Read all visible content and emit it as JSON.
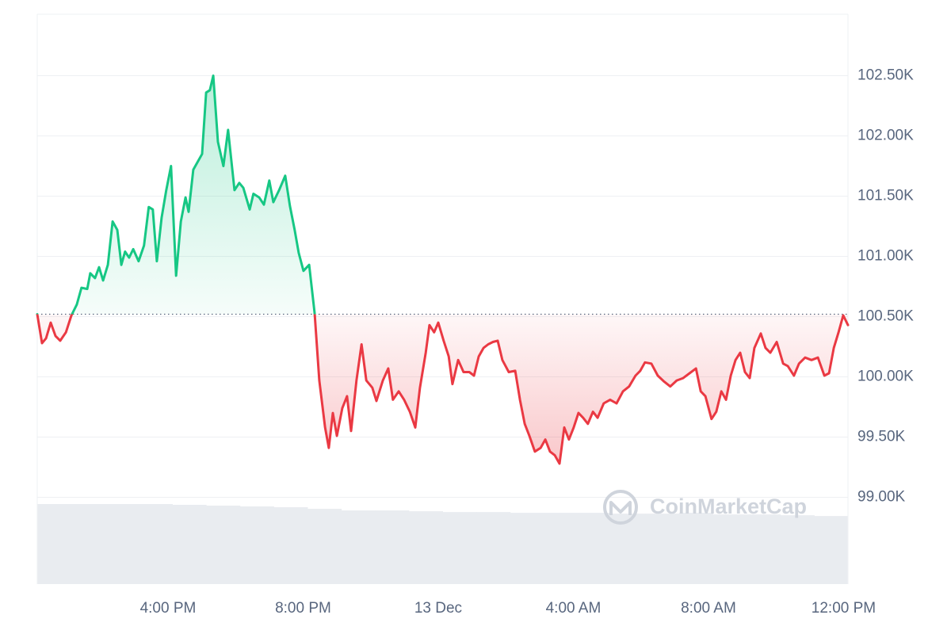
{
  "chart_data": {
    "type": "line",
    "watermark": "CoinMarketCap",
    "up_color": "#16c784",
    "down_color": "#ea3943",
    "baseline": 100520,
    "xlim": [
      12.13,
      36.13
    ],
    "ylim": [
      98280,
      103010
    ],
    "xticks": [
      {
        "value": 16,
        "label": "4:00 PM"
      },
      {
        "value": 20,
        "label": "8:00 PM"
      },
      {
        "value": 24,
        "label": "13 Dec"
      },
      {
        "value": 28,
        "label": "4:00 AM"
      },
      {
        "value": 32,
        "label": "8:00 AM"
      },
      {
        "value": 36,
        "label": "12:00 PM"
      }
    ],
    "yticks": [
      {
        "value": 99000,
        "label": "99.00K"
      },
      {
        "value": 99500,
        "label": "99.50K"
      },
      {
        "value": 100000,
        "label": "100.00K"
      },
      {
        "value": 100500,
        "label": "100.50K"
      },
      {
        "value": 101000,
        "label": "101.00K"
      },
      {
        "value": 101500,
        "label": "101.50K"
      },
      {
        "value": 102000,
        "label": "102.00K"
      },
      {
        "value": 102500,
        "label": "102.50K"
      }
    ],
    "grid": true,
    "x": [
      12.13,
      12.27,
      12.39,
      12.53,
      12.67,
      12.81,
      12.98,
      13.14,
      13.3,
      13.44,
      13.61,
      13.7,
      13.84,
      13.96,
      14.08,
      14.22,
      14.36,
      14.5,
      14.62,
      14.73,
      14.85,
      14.97,
      15.13,
      15.29,
      15.43,
      15.55,
      15.67,
      15.81,
      15.95,
      16.09,
      16.24,
      16.38,
      16.52,
      16.61,
      16.75,
      16.87,
      17.01,
      17.13,
      17.24,
      17.34,
      17.48,
      17.64,
      17.78,
      17.97,
      18.11,
      18.23,
      18.42,
      18.53,
      18.7,
      18.84,
      19.0,
      19.12,
      19.29,
      19.47,
      19.61,
      19.75,
      19.87,
      20.01,
      20.18,
      20.34,
      20.48,
      20.65,
      20.76,
      20.88,
      21.0,
      21.16,
      21.3,
      21.42,
      21.58,
      21.73,
      21.87,
      22.05,
      22.17,
      22.36,
      22.52,
      22.66,
      22.83,
      22.99,
      23.16,
      23.32,
      23.46,
      23.63,
      23.74,
      23.88,
      24.0,
      24.16,
      24.31,
      24.42,
      24.59,
      24.75,
      24.92,
      25.06,
      25.2,
      25.34,
      25.48,
      25.62,
      25.76,
      25.9,
      26.09,
      26.28,
      26.42,
      26.56,
      26.7,
      26.86,
      27.03,
      27.17,
      27.31,
      27.45,
      27.59,
      27.73,
      27.87,
      28.01,
      28.15,
      28.29,
      28.43,
      28.58,
      28.72,
      28.9,
      29.09,
      29.28,
      29.47,
      29.65,
      29.84,
      29.98,
      30.12,
      30.31,
      30.5,
      30.69,
      30.87,
      31.06,
      31.25,
      31.44,
      31.63,
      31.77,
      31.91,
      32.09,
      32.23,
      32.38,
      32.52,
      32.66,
      32.8,
      32.94,
      33.08,
      33.22,
      33.36,
      33.55,
      33.69,
      33.83,
      34.02,
      34.21,
      34.35,
      34.53,
      34.68,
      34.86,
      35.05,
      35.24,
      35.43,
      35.57,
      35.71,
      35.85,
      35.99,
      36.13
    ],
    "values": [
      100520,
      100280,
      100320,
      100450,
      100340,
      100300,
      100370,
      100510,
      100600,
      100740,
      100730,
      100860,
      100820,
      100910,
      100800,
      100930,
      101290,
      101220,
      100930,
      101040,
      100990,
      101060,
      100960,
      101090,
      101410,
      101390,
      100960,
      101320,
      101550,
      101750,
      100840,
      101290,
      101490,
      101370,
      101720,
      101780,
      101850,
      102360,
      102380,
      102500,
      101950,
      101750,
      102050,
      101550,
      101610,
      101570,
      101390,
      101520,
      101490,
      101430,
      101630,
      101450,
      101550,
      101670,
      101420,
      101220,
      101030,
      100880,
      100930,
      100530,
      99970,
      99580,
      99410,
      99700,
      99510,
      99740,
      99840,
      99550,
      99970,
      100270,
      99970,
      99910,
      99800,
      99970,
      100070,
      99810,
      99880,
      99810,
      99710,
      99580,
      99910,
      100200,
      100430,
      100370,
      100450,
      100300,
      100170,
      99940,
      100140,
      100040,
      100040,
      100010,
      100170,
      100240,
      100270,
      100290,
      100300,
      100140,
      100040,
      100050,
      99810,
      99610,
      99510,
      99380,
      99410,
      99480,
      99380,
      99350,
      99280,
      99580,
      99480,
      99580,
      99700,
      99660,
      99610,
      99710,
      99660,
      99780,
      99810,
      99780,
      99880,
      99920,
      100010,
      100050,
      100120,
      100110,
      100010,
      99960,
      99920,
      99970,
      99990,
      100030,
      100070,
      99880,
      99840,
      99650,
      99710,
      99880,
      99810,
      100010,
      100140,
      100200,
      100040,
      99990,
      100240,
      100360,
      100240,
      100200,
      100290,
      100110,
      100090,
      100010,
      100110,
      100160,
      100140,
      100160,
      100010,
      100030,
      100240,
      100370,
      100510,
      100430
    ],
    "volume": {
      "color": "#e9ecf0",
      "values": [
        100,
        100,
        100,
        100,
        99,
        98,
        97,
        96,
        94,
        92,
        92,
        91,
        90,
        90,
        89,
        89,
        89,
        88,
        88,
        89,
        87,
        87,
        86,
        85
      ]
    }
  }
}
